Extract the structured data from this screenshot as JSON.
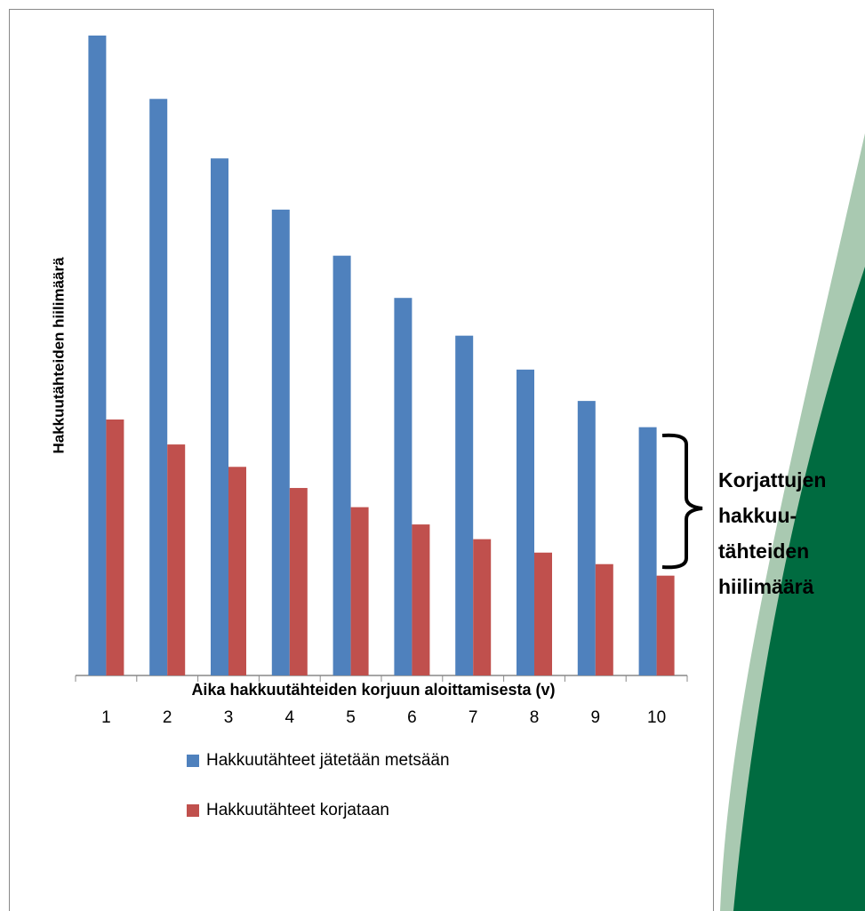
{
  "chart_data": {
    "type": "bar",
    "x_label": "Aika hakkuutähteiden korjuun aloittamisesta (v)",
    "y_label": "Hakkuutähteiden hiilimäärä",
    "categories": [
      "1",
      "2",
      "3",
      "4",
      "5",
      "6",
      "7",
      "8",
      "9",
      "10"
    ],
    "series": [
      {
        "name": "Hakkuutähteet jätetään metsään",
        "color": "#4f81bd",
        "values": [
          100,
          90.1,
          80.8,
          72.8,
          65.6,
          59.0,
          53.1,
          47.8,
          42.9,
          38.8
        ]
      },
      {
        "name": "Hakkuutähteet korjataan",
        "color": "#c0504d",
        "values": [
          40,
          36.1,
          32.6,
          29.3,
          26.3,
          23.6,
          21.3,
          19.2,
          17.4,
          15.6
        ]
      }
    ],
    "ylim": [
      0,
      100
    ],
    "legend": "bottom",
    "annotation": [
      "Korjattujen",
      "hakkuu-",
      "tähteiden",
      "hiilimäärä"
    ]
  }
}
